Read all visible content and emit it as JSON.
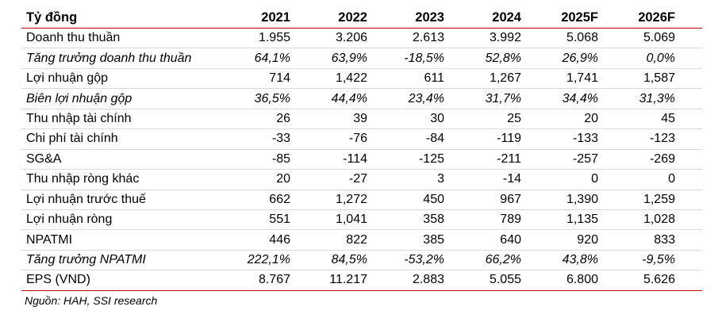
{
  "table": {
    "header": [
      "Tỷ đồng",
      "2021",
      "2022",
      "2023",
      "2024",
      "2025F",
      "2026F"
    ],
    "rows": [
      {
        "label": "Doanh thu thuần",
        "italic": false,
        "values": [
          "1.955",
          "3.206",
          "2.613",
          "3.992",
          "5.068",
          "5.069"
        ]
      },
      {
        "label": "Tăng trưởng doanh thu thuần",
        "italic": true,
        "values": [
          "64,1%",
          "63,9%",
          "-18,5%",
          "52,8%",
          "26,9%",
          "0,0%"
        ]
      },
      {
        "label": "Lợi nhuận gộp",
        "italic": false,
        "values": [
          "714",
          "1,422",
          "611",
          "1,267",
          "1,741",
          "1,587"
        ]
      },
      {
        "label": "Biên lợi nhuận gộp",
        "italic": true,
        "values": [
          "36,5%",
          "44,4%",
          "23,4%",
          "31,7%",
          "34,4%",
          "31,3%"
        ]
      },
      {
        "label": "Thu nhập tài chính",
        "italic": false,
        "values": [
          "26",
          "39",
          "30",
          "25",
          "20",
          "45"
        ]
      },
      {
        "label": "Chi phí tài chính",
        "italic": false,
        "values": [
          "-33",
          "-76",
          "-84",
          "-119",
          "-133",
          "-123"
        ]
      },
      {
        "label": "SG&A",
        "italic": false,
        "values": [
          "-85",
          "-114",
          "-125",
          "-211",
          "-257",
          "-269"
        ]
      },
      {
        "label": "Thu nhập ròng khác",
        "italic": false,
        "values": [
          "20",
          "-27",
          "3",
          "-14",
          "0",
          "0"
        ]
      },
      {
        "label": "Lợi nhuận trước thuế",
        "italic": false,
        "values": [
          "662",
          "1,272",
          "450",
          "967",
          "1,390",
          "1,259"
        ]
      },
      {
        "label": "Lợi nhuận ròng",
        "italic": false,
        "values": [
          "551",
          "1,041",
          "358",
          "789",
          "1,135",
          "1,028"
        ]
      },
      {
        "label": "NPATMI",
        "italic": false,
        "values": [
          "446",
          "822",
          "385",
          "640",
          "920",
          "833"
        ]
      },
      {
        "label": "Tăng trưởng NPATMI",
        "italic": true,
        "values": [
          "222,1%",
          "84,5%",
          "-53,2%",
          "66,2%",
          "43,8%",
          "-9,5%"
        ]
      },
      {
        "label": "EPS (VND)",
        "italic": false,
        "values": [
          "8.767",
          "11.217",
          "2.883",
          "5.055",
          "6.800",
          "5.626"
        ]
      }
    ]
  },
  "source": "Nguồn: HAH, SSI research",
  "colors": {
    "rule": "#c00000",
    "divider": "#d9d9d9"
  }
}
